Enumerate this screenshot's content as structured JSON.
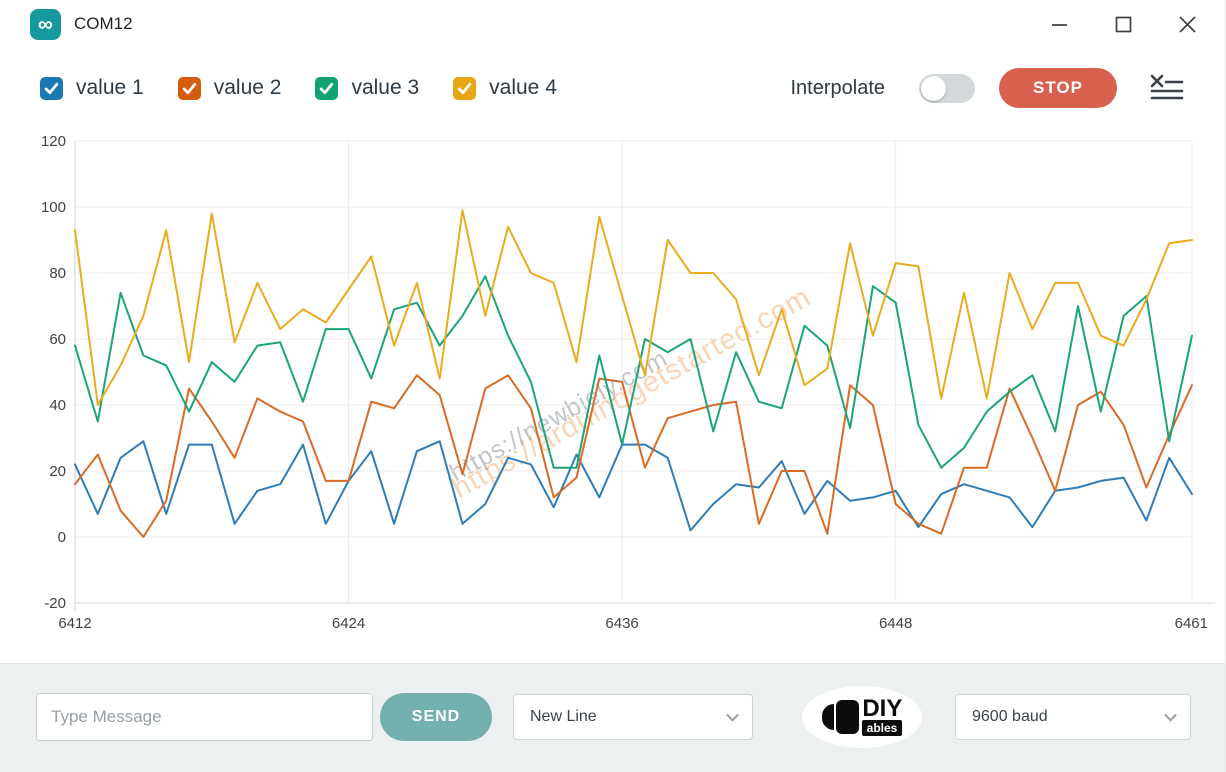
{
  "window": {
    "title": "COM12",
    "app_icon_glyph": "∞"
  },
  "toolbar": {
    "series": [
      {
        "label": "value 1",
        "color": "#1c77b5"
      },
      {
        "label": "value 2",
        "color": "#d35d0c"
      },
      {
        "label": "value 3",
        "color": "#12a171"
      },
      {
        "label": "value 4",
        "color": "#e7a713"
      }
    ],
    "interpolate_label": "Interpolate",
    "interpolate_state": "off",
    "stop_label": "STOP"
  },
  "watermarks": {
    "gray": "https://newbiely.com",
    "orange": "https://arduinogetstarted.com"
  },
  "chart_data": {
    "type": "line",
    "x": [
      6412,
      6413,
      6414,
      6415,
      6416,
      6417,
      6418,
      6419,
      6420,
      6421,
      6422,
      6423,
      6424,
      6425,
      6426,
      6427,
      6428,
      6429,
      6430,
      6431,
      6432,
      6433,
      6434,
      6435,
      6436,
      6437,
      6438,
      6439,
      6440,
      6441,
      6442,
      6443,
      6444,
      6445,
      6446,
      6447,
      6448,
      6449,
      6450,
      6451,
      6452,
      6453,
      6454,
      6455,
      6456,
      6457,
      6458,
      6459,
      6460,
      6461
    ],
    "series": [
      {
        "name": "value 1",
        "color": "#2e7db8",
        "values": [
          22,
          7,
          24,
          29,
          7,
          28,
          28,
          4,
          14,
          16,
          28,
          4,
          17,
          26,
          4,
          26,
          29,
          4,
          10,
          24,
          22,
          9,
          25,
          12,
          28,
          28,
          24,
          2,
          10,
          16,
          15,
          23,
          7,
          17,
          11,
          12,
          14,
          3,
          13,
          16,
          14,
          12,
          3,
          14,
          15,
          17,
          18,
          5,
          24,
          13
        ]
      },
      {
        "name": "value 2",
        "color": "#d96b25",
        "values": [
          16,
          25,
          8,
          0,
          11,
          45,
          35,
          24,
          42,
          38,
          35,
          17,
          17,
          41,
          39,
          49,
          43,
          19,
          45,
          49,
          39,
          12,
          18,
          48,
          47,
          21,
          36,
          38,
          40,
          41,
          4,
          20,
          20,
          1,
          46,
          40,
          10,
          4,
          1,
          21,
          21,
          45,
          30,
          14,
          40,
          44,
          34,
          15,
          31,
          46
        ]
      },
      {
        "name": "value 3",
        "color": "#1ba47b",
        "values": [
          58,
          35,
          74,
          55,
          52,
          38,
          53,
          47,
          58,
          59,
          41,
          63,
          63,
          48,
          69,
          71,
          58,
          67,
          79,
          61,
          47,
          21,
          21,
          55,
          28,
          60,
          56,
          60,
          32,
          56,
          41,
          39,
          64,
          58,
          33,
          76,
          71,
          34,
          21,
          27,
          38,
          44,
          49,
          32,
          70,
          38,
          67,
          73,
          29,
          61
        ]
      },
      {
        "name": "value 4",
        "color": "#e9ac20",
        "values": [
          93,
          40,
          52,
          67,
          93,
          53,
          98,
          59,
          77,
          63,
          69,
          65,
          75,
          85,
          58,
          77,
          48,
          99,
          67,
          94,
          80,
          77,
          53,
          97,
          73,
          49,
          90,
          80,
          80,
          72,
          49,
          69,
          46,
          51,
          89,
          61,
          83,
          82,
          42,
          74,
          42,
          80,
          63,
          77,
          77,
          61,
          58,
          72,
          89,
          90
        ]
      }
    ],
    "ylim": [
      -20,
      120
    ],
    "yticks": [
      120,
      100,
      80,
      60,
      40,
      20,
      0,
      -20
    ],
    "xtick_labels": [
      "6412",
      "6424",
      "6436",
      "6448",
      "6461"
    ],
    "xtick_indices": [
      0,
      12,
      24,
      36,
      49
    ],
    "grid": true,
    "legend_position": "top"
  },
  "bottom": {
    "message_placeholder": "Type Message",
    "send_label": "SEND",
    "line_ending_value": "New Line",
    "baud_value": "9600 baud",
    "logo_line1": "DIY",
    "logo_line2": "ables"
  }
}
